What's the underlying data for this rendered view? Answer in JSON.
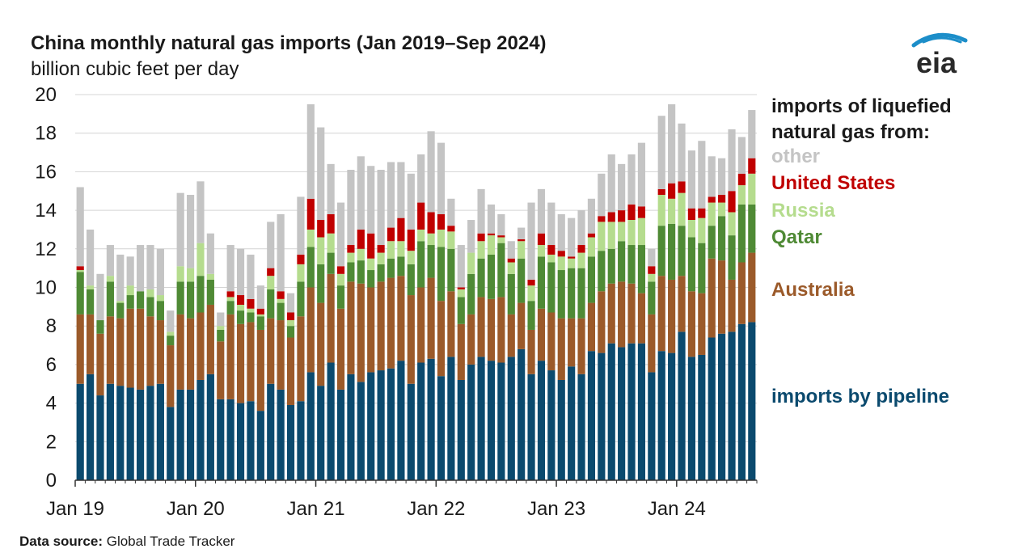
{
  "chart_data": {
    "type": "bar",
    "stacked": true,
    "title": "China monthly natural gas imports (Jan 2019–Sep 2024)",
    "ylabel": "billion cubic feet per day",
    "ylim": [
      0,
      20
    ],
    "yticks": [
      0,
      2,
      4,
      6,
      8,
      10,
      12,
      14,
      16,
      18,
      20
    ],
    "xtick_labels": [
      "Jan 19",
      "Jan 20",
      "Jan 21",
      "Jan 22",
      "Jan 23",
      "Jan 24"
    ],
    "legend_title": "imports of liquefied natural gas from:",
    "legend_placement": "right",
    "grid": "horizontal",
    "series": [
      {
        "name": "imports by pipeline",
        "color": "#0b4a6e",
        "values": [
          5.0,
          5.5,
          4.4,
          5.0,
          4.9,
          4.8,
          4.7,
          4.9,
          5.0,
          3.8,
          4.7,
          4.7,
          5.2,
          5.5,
          4.2,
          4.2,
          4.0,
          4.1,
          3.6,
          5.0,
          4.7,
          3.9,
          4.1,
          5.6,
          4.9,
          6.1,
          4.7,
          5.5,
          5.1,
          5.6,
          5.7,
          5.8,
          6.2,
          5.0,
          6.1,
          6.3,
          5.4,
          6.4,
          5.2,
          6.0,
          6.4,
          6.2,
          6.1,
          6.4,
          6.8,
          5.5,
          6.2,
          5.7,
          5.2,
          5.9,
          5.5,
          6.7,
          6.6,
          7.1,
          6.9,
          7.1,
          7.1,
          5.6,
          6.7,
          6.6,
          7.7,
          6.4,
          6.5,
          7.4,
          7.6,
          7.7,
          8.1,
          8.2
        ]
      },
      {
        "name": "Australia",
        "color": "#9b5a2a",
        "values": [
          3.6,
          3.1,
          3.2,
          3.5,
          3.5,
          4.1,
          4.2,
          3.6,
          3.3,
          3.2,
          3.9,
          3.7,
          3.5,
          3.6,
          3.0,
          4.4,
          4.1,
          4.1,
          4.2,
          3.4,
          3.6,
          3.5,
          4.4,
          4.4,
          4.3,
          4.6,
          4.2,
          4.8,
          5.1,
          4.4,
          4.6,
          4.7,
          4.4,
          4.6,
          3.9,
          4.2,
          3.9,
          3.4,
          2.9,
          2.6,
          3.1,
          3.2,
          3.4,
          2.2,
          2.4,
          2.3,
          2.7,
          3.0,
          3.2,
          2.5,
          2.9,
          2.5,
          3.2,
          3.1,
          3.4,
          3.1,
          2.6,
          3.0,
          3.9,
          3.8,
          2.9,
          3.4,
          3.2,
          4.1,
          3.8,
          2.7,
          3.2,
          3.6
        ]
      },
      {
        "name": "Qatar",
        "color": "#4f8a35",
        "values": [
          2.2,
          1.3,
          0.7,
          1.8,
          0.8,
          0.7,
          0.9,
          1.0,
          1.0,
          0.5,
          1.7,
          1.9,
          1.9,
          1.3,
          0.6,
          0.7,
          0.7,
          0.5,
          0.7,
          1.5,
          0.9,
          0.6,
          1.8,
          2.1,
          2.0,
          1.1,
          1.2,
          1.0,
          1.2,
          0.9,
          0.9,
          1.0,
          1.0,
          1.6,
          2.4,
          1.7,
          2.8,
          2.2,
          1.4,
          2.1,
          2.0,
          2.3,
          2.8,
          2.1,
          2.3,
          1.5,
          2.7,
          2.6,
          2.5,
          2.6,
          2.6,
          2.4,
          2.1,
          1.8,
          2.1,
          2.0,
          2.5,
          1.7,
          2.6,
          2.9,
          2.6,
          2.8,
          2.6,
          1.7,
          2.3,
          2.3,
          3.0,
          2.5
        ]
      },
      {
        "name": "Russia",
        "color": "#b5dc8e",
        "values": [
          0.1,
          0.2,
          0.0,
          0.3,
          0.1,
          0.5,
          0.0,
          0.4,
          0.3,
          0.2,
          0.8,
          0.7,
          1.7,
          0.3,
          0.2,
          0.2,
          0.3,
          0.2,
          0.1,
          0.7,
          0.2,
          0.3,
          0.9,
          0.9,
          1.4,
          1.0,
          0.6,
          0.5,
          0.6,
          0.6,
          0.6,
          0.9,
          0.8,
          0.7,
          0.6,
          0.6,
          0.9,
          0.9,
          0.4,
          1.1,
          0.9,
          1.0,
          0.3,
          0.6,
          0.9,
          0.8,
          0.6,
          0.4,
          0.7,
          0.5,
          0.8,
          1.0,
          1.5,
          1.4,
          1.0,
          1.3,
          1.4,
          0.4,
          1.6,
          1.3,
          1.7,
          0.9,
          1.3,
          1.2,
          0.7,
          1.2,
          1.0,
          1.6
        ]
      },
      {
        "name": "United States",
        "color": "#c00000",
        "values": [
          0.2,
          0.0,
          0.0,
          0.0,
          0.0,
          0.0,
          0.0,
          0.0,
          0.0,
          0.0,
          0.0,
          0.0,
          0.0,
          0.0,
          0.0,
          0.3,
          0.5,
          0.5,
          0.3,
          0.4,
          0.4,
          0.4,
          0.5,
          1.6,
          0.9,
          1.0,
          0.4,
          0.4,
          1.0,
          1.3,
          0.4,
          0.7,
          1.2,
          1.1,
          1.4,
          1.1,
          0.8,
          0.3,
          0.1,
          0.0,
          0.4,
          0.1,
          0.1,
          0.2,
          0.1,
          0.3,
          0.6,
          0.5,
          0.3,
          0.1,
          0.4,
          0.2,
          0.3,
          0.5,
          0.6,
          0.8,
          0.6,
          0.4,
          0.3,
          0.8,
          0.6,
          0.6,
          0.5,
          0.3,
          0.4,
          1.1,
          0.6,
          0.8
        ]
      },
      {
        "name": "other",
        "color": "#c4c4c4",
        "values": [
          4.1,
          2.9,
          2.4,
          1.6,
          2.4,
          1.5,
          2.4,
          2.3,
          2.4,
          1.1,
          3.8,
          3.8,
          3.2,
          2.1,
          0.7,
          2.4,
          2.4,
          2.3,
          1.2,
          2.4,
          4.0,
          1.0,
          3.0,
          4.9,
          4.8,
          2.6,
          3.3,
          3.9,
          3.8,
          3.5,
          3.9,
          3.4,
          2.9,
          2.9,
          2.5,
          4.2,
          3.7,
          1.4,
          2.2,
          1.7,
          2.3,
          1.5,
          1.1,
          0.9,
          0.6,
          4.0,
          2.3,
          2.2,
          1.9,
          2.0,
          1.8,
          1.8,
          2.2,
          3.0,
          2.4,
          2.6,
          3.3,
          0.9,
          3.8,
          4.1,
          3.0,
          3.0,
          3.5,
          2.1,
          1.9,
          3.2,
          1.9,
          2.5
        ]
      }
    ]
  },
  "legend": {
    "head": "imports of liquefied natural gas from:",
    "other": "other",
    "us": "United States",
    "russia": "Russia",
    "qatar": "Qatar",
    "australia": "Australia",
    "pipeline": "imports by pipeline"
  },
  "logo_text": "eia",
  "source": {
    "label": "Data source:",
    "text": "Global Trade Tracker"
  },
  "colors": {
    "pipeline": "#0b4a6e",
    "australia": "#9b5a2a",
    "qatar": "#4f8a35",
    "russia": "#b5dc8e",
    "us": "#c00000",
    "other": "#c4c4c4",
    "logo_blue": "#1c8ec9"
  }
}
